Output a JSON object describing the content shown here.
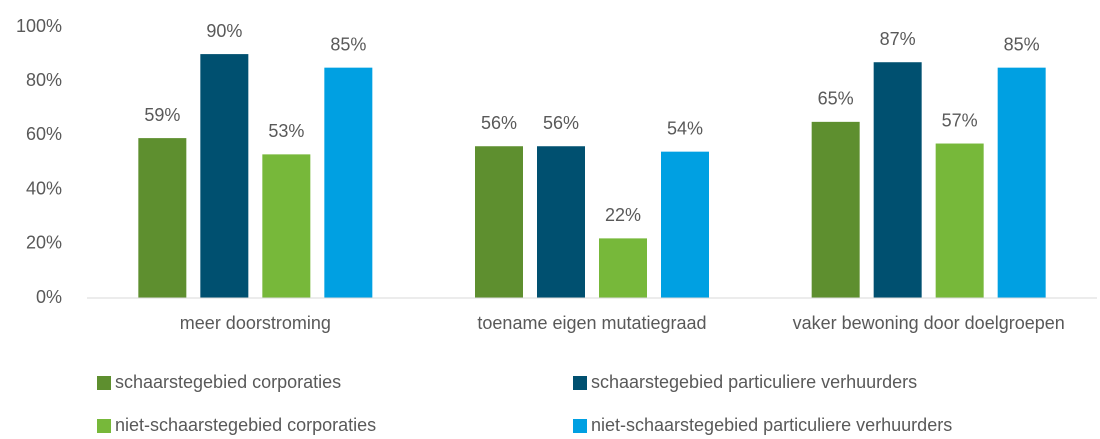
{
  "chart_data": {
    "type": "bar",
    "categories": [
      "meer doorstroming",
      "toename eigen mutatiegraad",
      "vaker bewoning door doelgroepen"
    ],
    "series": [
      {
        "name": "schaarstegebied corporaties",
        "color": "#5e8f2f",
        "values": [
          59,
          56,
          65
        ],
        "value_labels": [
          "59%",
          "56%",
          "65%"
        ]
      },
      {
        "name": "schaarstegebied particuliere verhuurders",
        "color": "#005070",
        "values": [
          90,
          56,
          87
        ],
        "value_labels": [
          "90%",
          "56%",
          "87%"
        ]
      },
      {
        "name": "niet-schaarstegebied corporaties",
        "color": "#77b83a",
        "values": [
          53,
          22,
          57
        ],
        "value_labels": [
          "53%",
          "22%",
          "57%"
        ]
      },
      {
        "name": "niet-schaarstegebied particuliere verhuurders",
        "color": "#00a0e2",
        "values": [
          85,
          54,
          85
        ],
        "value_labels": [
          "85%",
          "54%",
          "85%"
        ]
      }
    ],
    "ylim": [
      0,
      100
    ],
    "yticks": [
      {
        "value": 0,
        "label": "0%"
      },
      {
        "value": 20,
        "label": "20%"
      },
      {
        "value": 40,
        "label": "40%"
      },
      {
        "value": 60,
        "label": "60%"
      },
      {
        "value": 80,
        "label": "80%"
      },
      {
        "value": 100,
        "label": "100%"
      }
    ],
    "grid": false,
    "legend": "bottom"
  }
}
